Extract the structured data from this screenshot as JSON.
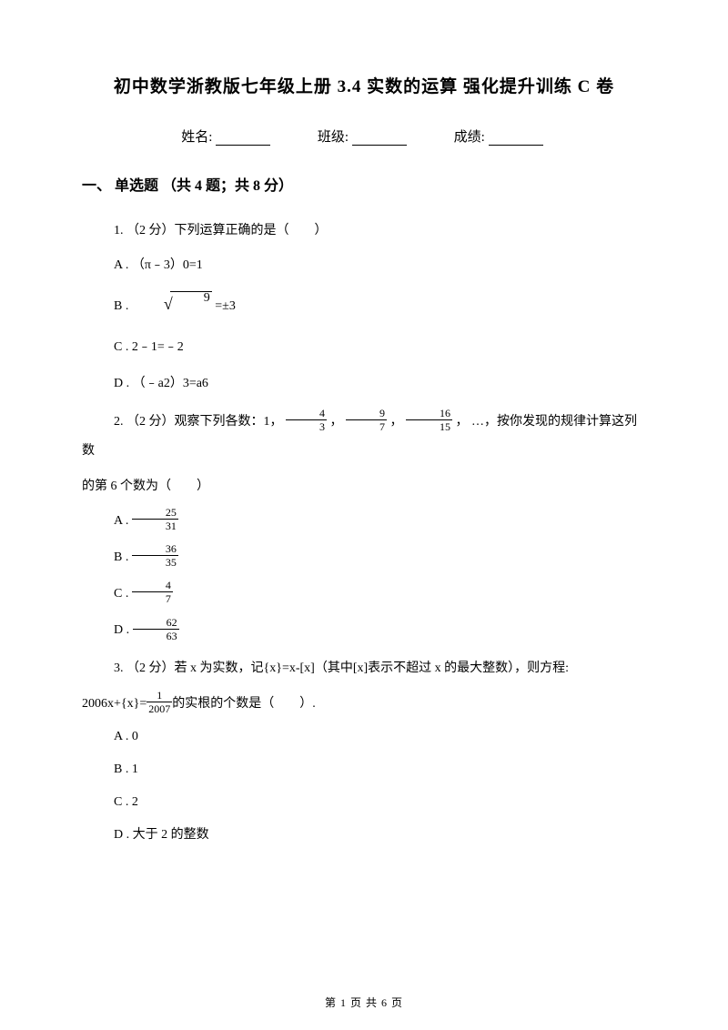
{
  "title": "初中数学浙教版七年级上册 3.4 实数的运算 强化提升训练 C 卷",
  "info": {
    "name_label": "姓名:",
    "class_label": "班级:",
    "score_label": "成绩:"
  },
  "section1": {
    "heading": "一、 单选题 （共 4 题；共 8 分）",
    "q1": {
      "stem": "1. （2 分）下列运算正确的是（　　）",
      "A": "A . （π﹣3）0=1",
      "B_pre": "B . ",
      "B_num": "9",
      "B_post": " =±3",
      "C": "C . 2﹣1=﹣2",
      "D": "D . （﹣a2）3=a6"
    },
    "q2": {
      "stem_1": "2. （2 分）观察下列各数：1，",
      "stem_2": " ， ",
      "stem_3": " ， ",
      "stem_4": " ，  …，按你发现的规律计算这列数",
      "stem_5": "的第 6 个数为（　　）",
      "f1": {
        "n": "4",
        "d": "3"
      },
      "f2": {
        "n": "9",
        "d": "7"
      },
      "f3": {
        "n": "16",
        "d": "15"
      },
      "A_pre": "A . ",
      "A": {
        "n": "25",
        "d": "31"
      },
      "B_pre": "B . ",
      "B": {
        "n": "36",
        "d": "35"
      },
      "C_pre": "C . ",
      "C": {
        "n": "4",
        "d": "7"
      },
      "D_pre": "D . ",
      "D": {
        "n": "62",
        "d": "63"
      }
    },
    "q3": {
      "stem_1": "3. （2 分）若 x 为实数，记{x}=x-[x]（其中[x]表示不超过 x 的最大整数），则方程:",
      "stem_2a": "2006x+{x}=",
      "f": {
        "n": "1",
        "d": "2007"
      },
      "stem_2b": "的实根的个数是（　　）.",
      "A": "A . 0",
      "B": "B . 1",
      "C": "C . 2",
      "D": "D . 大于 2 的整数"
    }
  },
  "footer": "第 1 页 共 6 页"
}
